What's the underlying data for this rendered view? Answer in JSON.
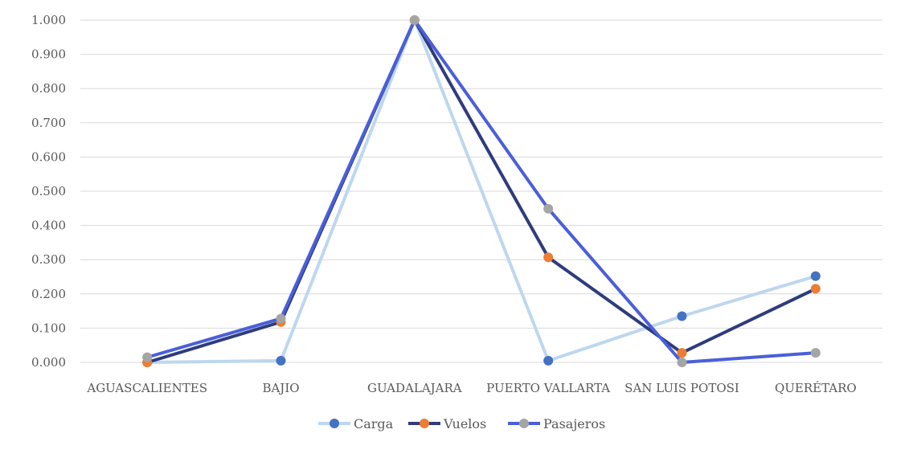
{
  "chart_data": {
    "type": "line",
    "title": "",
    "xlabel": "",
    "ylabel": "",
    "categories": [
      "AGUASCALIENTES",
      "BAJIO",
      "GUADALAJARA",
      "PUERTO VALLARTA",
      "SAN LUIS POTOSI",
      "QUERÉTARO"
    ],
    "ylim": [
      0,
      1
    ],
    "yticks": [
      "0.000",
      "0.100",
      "0.200",
      "0.300",
      "0.400",
      "0.500",
      "0.600",
      "0.700",
      "0.800",
      "0.900",
      "1.000"
    ],
    "grid": true,
    "legend_position": "bottom",
    "series": [
      {
        "name": "Carga",
        "values": [
          0.0,
          0.005,
          1.0,
          0.005,
          0.135,
          0.252
        ],
        "line_color": "#bdd7ee",
        "marker_color": "#4472c4"
      },
      {
        "name": "Vuelos",
        "values": [
          0.0,
          0.118,
          1.0,
          0.307,
          0.028,
          0.215
        ],
        "line_color": "#2e3c7e",
        "marker_color": "#ed7d31"
      },
      {
        "name": "Pasajeros",
        "values": [
          0.015,
          0.128,
          1.0,
          0.449,
          0.0,
          0.028
        ],
        "line_color": "#4a5fd8",
        "marker_color": "#a5a5a5"
      }
    ]
  }
}
